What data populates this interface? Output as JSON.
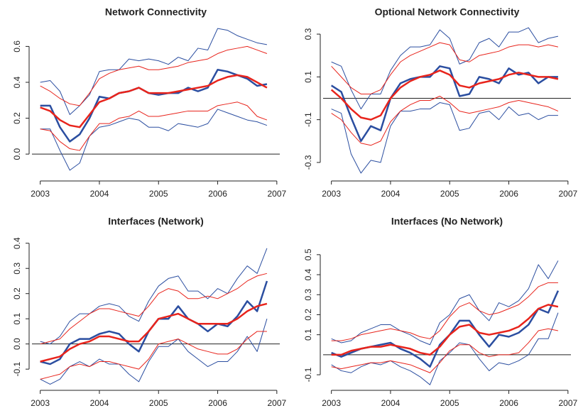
{
  "chart_data": [
    {
      "type": "line",
      "title": "Network Connectivity",
      "x": [
        2003,
        2003.167,
        2003.333,
        2003.5,
        2003.667,
        2003.833,
        2004,
        2004.167,
        2004.333,
        2004.5,
        2004.667,
        2004.833,
        2005,
        2005.167,
        2005.333,
        2005.5,
        2005.667,
        2005.833,
        2006,
        2006.167,
        2006.333,
        2006.5,
        2006.667,
        2006.833
      ],
      "xlim": [
        2002.86,
        2007.05
      ],
      "xticks": [
        2003,
        2004,
        2005,
        2006,
        2007
      ],
      "ylim": [
        -0.13,
        0.74
      ],
      "yticks": [
        {
          "value": 0,
          "label": "0.0"
        },
        0.2,
        0.4,
        0.6
      ],
      "reference_line": 0,
      "series": [
        {
          "color": "#2b4ea0",
          "line_width": 1,
          "values": [
            0.4,
            0.41,
            0.35,
            0.22,
            0.27,
            0.33,
            0.46,
            0.47,
            0.47,
            0.53,
            0.52,
            0.53,
            0.52,
            0.5,
            0.54,
            0.52,
            0.59,
            0.58,
            0.7,
            0.69,
            0.66,
            0.64,
            0.62,
            0.61
          ]
        },
        {
          "color": "#2b4ea0",
          "line_width": 1,
          "values": [
            0.14,
            0.14,
            0.02,
            -0.09,
            -0.05,
            0.1,
            0.15,
            0.16,
            0.18,
            0.2,
            0.19,
            0.15,
            0.15,
            0.13,
            0.17,
            0.16,
            0.15,
            0.17,
            0.25,
            0.23,
            0.21,
            0.19,
            0.18,
            0.16
          ]
        },
        {
          "color": "#e8241c",
          "line_width": 1,
          "values": [
            0.38,
            0.35,
            0.31,
            0.28,
            0.27,
            0.34,
            0.42,
            0.45,
            0.47,
            0.48,
            0.49,
            0.47,
            0.47,
            0.48,
            0.49,
            0.51,
            0.52,
            0.53,
            0.56,
            0.58,
            0.59,
            0.6,
            0.58,
            0.56
          ]
        },
        {
          "color": "#e8241c",
          "line_width": 1,
          "values": [
            0.14,
            0.13,
            0.07,
            0.03,
            0.02,
            0.1,
            0.17,
            0.17,
            0.2,
            0.21,
            0.24,
            0.21,
            0.21,
            0.22,
            0.23,
            0.24,
            0.24,
            0.24,
            0.27,
            0.28,
            0.29,
            0.27,
            0.21,
            0.19
          ]
        },
        {
          "color": "#2b4ea0",
          "line_width": 2.5,
          "values": [
            0.27,
            0.27,
            0.15,
            0.07,
            0.11,
            0.2,
            0.32,
            0.31,
            0.34,
            0.35,
            0.37,
            0.34,
            0.33,
            0.34,
            0.34,
            0.37,
            0.35,
            0.37,
            0.47,
            0.46,
            0.44,
            0.42,
            0.38,
            0.39
          ]
        },
        {
          "color": "#e8241c",
          "line_width": 2.5,
          "values": [
            0.26,
            0.24,
            0.19,
            0.16,
            0.15,
            0.22,
            0.29,
            0.31,
            0.34,
            0.35,
            0.37,
            0.34,
            0.34,
            0.34,
            0.35,
            0.36,
            0.37,
            0.38,
            0.41,
            0.43,
            0.44,
            0.43,
            0.4,
            0.37
          ]
        }
      ]
    },
    {
      "type": "line",
      "title": "Optional Network Connectivity",
      "x": [
        2003,
        2003.167,
        2003.333,
        2003.5,
        2003.667,
        2003.833,
        2004,
        2004.167,
        2004.333,
        2004.5,
        2004.667,
        2004.833,
        2005,
        2005.167,
        2005.333,
        2005.5,
        2005.667,
        2005.833,
        2006,
        2006.167,
        2006.333,
        2006.5,
        2006.667,
        2006.833
      ],
      "xlim": [
        2002.86,
        2007.05
      ],
      "xticks": [
        2003,
        2004,
        2005,
        2006,
        2007
      ],
      "ylim": [
        -0.37,
        0.36
      ],
      "yticks": [
        -0.3,
        -0.1,
        0.1,
        0.3
      ],
      "reference_line": 0,
      "series": [
        {
          "color": "#2b4ea0",
          "line_width": 1,
          "values": [
            0.17,
            0.15,
            0.04,
            -0.05,
            0.02,
            0.02,
            0.13,
            0.2,
            0.24,
            0.24,
            0.25,
            0.32,
            0.28,
            0.16,
            0.18,
            0.26,
            0.28,
            0.24,
            0.31,
            0.31,
            0.33,
            0.26,
            0.28,
            0.29
          ]
        },
        {
          "color": "#2b4ea0",
          "line_width": 1,
          "values": [
            -0.05,
            -0.07,
            -0.26,
            -0.35,
            -0.29,
            -0.3,
            -0.13,
            -0.06,
            -0.06,
            -0.05,
            -0.05,
            -0.02,
            -0.03,
            -0.15,
            -0.14,
            -0.07,
            -0.06,
            -0.1,
            -0.04,
            -0.08,
            -0.07,
            -0.1,
            -0.08,
            -0.08
          ]
        },
        {
          "color": "#e8241c",
          "line_width": 1,
          "values": [
            0.15,
            0.1,
            0.05,
            0.02,
            0.02,
            0.04,
            0.11,
            0.17,
            0.2,
            0.22,
            0.24,
            0.26,
            0.25,
            0.18,
            0.17,
            0.2,
            0.21,
            0.22,
            0.24,
            0.25,
            0.25,
            0.24,
            0.25,
            0.24
          ]
        },
        {
          "color": "#e8241c",
          "line_width": 1,
          "values": [
            -0.07,
            -0.1,
            -0.16,
            -0.21,
            -0.22,
            -0.2,
            -0.11,
            -0.06,
            -0.03,
            -0.01,
            -0.01,
            0.01,
            -0.02,
            -0.06,
            -0.07,
            -0.06,
            -0.05,
            -0.04,
            -0.02,
            -0.01,
            -0.02,
            -0.03,
            -0.04,
            -0.06
          ]
        },
        {
          "color": "#2b4ea0",
          "line_width": 2.5,
          "values": [
            0.06,
            0.03,
            -0.09,
            -0.2,
            -0.13,
            -0.15,
            0.0,
            0.07,
            0.09,
            0.1,
            0.1,
            0.15,
            0.14,
            0.01,
            0.02,
            0.1,
            0.09,
            0.07,
            0.14,
            0.11,
            0.12,
            0.07,
            0.1,
            0.1
          ]
        },
        {
          "color": "#e8241c",
          "line_width": 2.5,
          "values": [
            0.04,
            0.0,
            -0.05,
            -0.09,
            -0.1,
            -0.08,
            0.0,
            0.05,
            0.08,
            0.1,
            0.11,
            0.13,
            0.11,
            0.06,
            0.05,
            0.07,
            0.08,
            0.09,
            0.11,
            0.12,
            0.11,
            0.1,
            0.1,
            0.09
          ]
        }
      ]
    },
    {
      "type": "line",
      "title": "Interfaces (Network)",
      "x": [
        2003,
        2003.167,
        2003.333,
        2003.5,
        2003.667,
        2003.833,
        2004,
        2004.167,
        2004.333,
        2004.5,
        2004.667,
        2004.833,
        2005,
        2005.167,
        2005.333,
        2005.5,
        2005.667,
        2005.833,
        2006,
        2006.167,
        2006.333,
        2006.5,
        2006.667,
        2006.833
      ],
      "xlim": [
        2002.86,
        2007.05
      ],
      "xticks": [
        2003,
        2004,
        2005,
        2006,
        2007
      ],
      "ylim": [
        -0.17,
        0.45
      ],
      "yticks": [
        -0.1,
        {
          "value": 0,
          "label": "0.0"
        },
        0.1,
        0.2,
        0.3,
        0.4
      ],
      "reference_line": 0,
      "series": [
        {
          "color": "#2b4ea0",
          "line_width": 1,
          "values": [
            0.01,
            0.0,
            0.03,
            0.09,
            0.12,
            0.12,
            0.15,
            0.16,
            0.15,
            0.11,
            0.09,
            0.17,
            0.23,
            0.26,
            0.27,
            0.21,
            0.21,
            0.18,
            0.22,
            0.2,
            0.26,
            0.31,
            0.28,
            0.38
          ]
        },
        {
          "color": "#2b4ea0",
          "line_width": 1,
          "values": [
            -0.14,
            -0.16,
            -0.14,
            -0.09,
            -0.07,
            -0.09,
            -0.06,
            -0.08,
            -0.08,
            -0.12,
            -0.15,
            -0.07,
            -0.01,
            -0.01,
            0.02,
            -0.03,
            -0.06,
            -0.09,
            -0.07,
            -0.07,
            -0.03,
            0.03,
            -0.03,
            0.1
          ]
        },
        {
          "color": "#e8241c",
          "line_width": 1,
          "values": [
            0.0,
            0.01,
            0.02,
            0.06,
            0.09,
            0.12,
            0.14,
            0.14,
            0.13,
            0.12,
            0.11,
            0.15,
            0.2,
            0.22,
            0.21,
            0.18,
            0.18,
            0.19,
            0.18,
            0.2,
            0.22,
            0.25,
            0.27,
            0.28
          ]
        },
        {
          "color": "#e8241c",
          "line_width": 1,
          "values": [
            -0.14,
            -0.13,
            -0.12,
            -0.09,
            -0.08,
            -0.09,
            -0.07,
            -0.07,
            -0.08,
            -0.09,
            -0.1,
            -0.06,
            0.0,
            0.01,
            0.02,
            0.0,
            -0.02,
            -0.03,
            -0.04,
            -0.04,
            -0.02,
            0.02,
            0.05,
            0.05
          ]
        },
        {
          "color": "#2b4ea0",
          "line_width": 2.5,
          "values": [
            -0.07,
            -0.08,
            -0.06,
            0.0,
            0.02,
            0.02,
            0.04,
            0.05,
            0.04,
            0.0,
            -0.03,
            0.05,
            0.1,
            0.1,
            0.15,
            0.1,
            0.08,
            0.05,
            0.08,
            0.07,
            0.11,
            0.17,
            0.13,
            0.25
          ]
        },
        {
          "color": "#e8241c",
          "line_width": 2.5,
          "values": [
            -0.07,
            -0.06,
            -0.05,
            -0.02,
            0.0,
            0.01,
            0.03,
            0.03,
            0.02,
            0.01,
            0.01,
            0.05,
            0.1,
            0.11,
            0.12,
            0.1,
            0.08,
            0.08,
            0.08,
            0.08,
            0.1,
            0.13,
            0.15,
            0.16
          ]
        }
      ]
    },
    {
      "type": "line",
      "title": "Interfaces (No Network)",
      "x": [
        2003,
        2003.167,
        2003.333,
        2003.5,
        2003.667,
        2003.833,
        2004,
        2004.167,
        2004.333,
        2004.5,
        2004.667,
        2004.833,
        2005,
        2005.167,
        2005.333,
        2005.5,
        2005.667,
        2005.833,
        2006,
        2006.167,
        2006.333,
        2006.5,
        2006.667,
        2006.833
      ],
      "xlim": [
        2002.86,
        2007.05
      ],
      "xticks": [
        2003,
        2004,
        2005,
        2006,
        2007
      ],
      "ylim": [
        -0.16,
        0.62
      ],
      "yticks": [
        -0.1,
        0.1,
        0.2,
        0.3,
        0.4,
        0.5
      ],
      "reference_line": 0,
      "series": [
        {
          "color": "#2b4ea0",
          "line_width": 1,
          "values": [
            0.08,
            0.06,
            0.07,
            0.11,
            0.13,
            0.15,
            0.15,
            0.12,
            0.1,
            0.07,
            0.05,
            0.16,
            0.2,
            0.28,
            0.3,
            0.22,
            0.17,
            0.26,
            0.24,
            0.27,
            0.33,
            0.45,
            0.38,
            0.47
          ]
        },
        {
          "color": "#2b4ea0",
          "line_width": 1,
          "values": [
            -0.05,
            -0.08,
            -0.09,
            -0.06,
            -0.04,
            -0.05,
            -0.03,
            -0.06,
            -0.08,
            -0.11,
            -0.15,
            -0.03,
            0.01,
            0.06,
            0.05,
            -0.02,
            -0.08,
            -0.04,
            -0.05,
            -0.03,
            0.0,
            0.08,
            0.08,
            0.21
          ]
        },
        {
          "color": "#e8241c",
          "line_width": 1,
          "values": [
            0.07,
            0.07,
            0.08,
            0.1,
            0.11,
            0.12,
            0.13,
            0.12,
            0.11,
            0.09,
            0.08,
            0.12,
            0.19,
            0.24,
            0.26,
            0.22,
            0.2,
            0.21,
            0.23,
            0.25,
            0.29,
            0.34,
            0.36,
            0.36
          ]
        },
        {
          "color": "#e8241c",
          "line_width": 1,
          "values": [
            -0.06,
            -0.07,
            -0.06,
            -0.05,
            -0.04,
            -0.04,
            -0.03,
            -0.04,
            -0.05,
            -0.07,
            -0.09,
            -0.04,
            0.02,
            0.05,
            0.05,
            0.01,
            -0.01,
            0.0,
            0.0,
            0.01,
            0.06,
            0.12,
            0.13,
            0.12
          ]
        },
        {
          "color": "#2b4ea0",
          "line_width": 2.5,
          "values": [
            0.01,
            -0.01,
            0.01,
            0.03,
            0.04,
            0.05,
            0.06,
            0.03,
            0.01,
            -0.02,
            -0.06,
            0.05,
            0.1,
            0.17,
            0.17,
            0.1,
            0.04,
            0.1,
            0.09,
            0.11,
            0.15,
            0.23,
            0.21,
            0.32
          ]
        },
        {
          "color": "#e8241c",
          "line_width": 2.5,
          "values": [
            0.0,
            0.0,
            0.02,
            0.03,
            0.04,
            0.04,
            0.05,
            0.04,
            0.03,
            0.01,
            0.0,
            0.04,
            0.1,
            0.14,
            0.15,
            0.11,
            0.1,
            0.11,
            0.12,
            0.14,
            0.18,
            0.23,
            0.25,
            0.24
          ]
        }
      ]
    }
  ]
}
